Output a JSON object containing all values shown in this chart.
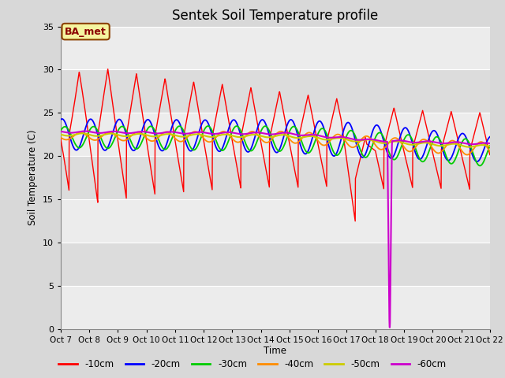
{
  "title": "Sentek Soil Temperature profile",
  "ylabel": "Soil Temperature (C)",
  "xlabel": "Time",
  "annotation": "BA_met",
  "ylim": [
    0,
    35
  ],
  "yticks": [
    0,
    5,
    10,
    15,
    20,
    25,
    30,
    35
  ],
  "x_tick_labels": [
    "Oct 7",
    "Oct 8",
    "Oct 9",
    "Oct 10",
    "Oct 11",
    "Oct 12",
    "Oct 13",
    "Oct 14",
    "Oct 15",
    "Oct 16",
    "Oct 17",
    "Oct 18",
    "Oct 19",
    "Oct 20",
    "Oct 21",
    "Oct 22"
  ],
  "bg_color": "#d8d8d8",
  "plot_bg_light": "#ececec",
  "plot_bg_dark": "#dcdcdc",
  "grid_color": "#c0c0c0",
  "colors": {
    "-10cm": "#ff0000",
    "-20cm": "#0000ff",
    "-30cm": "#00cc00",
    "-40cm": "#ff8c00",
    "-50cm": "#cccc00",
    "-60cm": "#cc00cc"
  },
  "legend_labels": [
    "-10cm",
    "-20cm",
    "-30cm",
    "-40cm",
    "-50cm",
    "-60cm"
  ]
}
